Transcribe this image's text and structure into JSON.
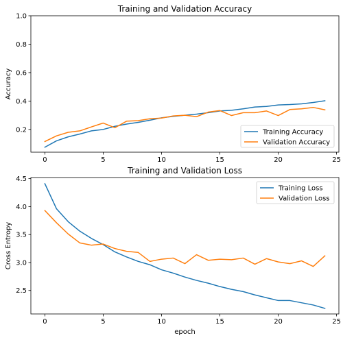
{
  "chart_data": [
    {
      "type": "line",
      "title": "Training and Validation Accuracy",
      "xlabel": "",
      "ylabel": "Accuracy",
      "xlim": [
        -1.2,
        25.2
      ],
      "ylim": [
        0.04,
        1.0
      ],
      "xticks": [
        0,
        5,
        10,
        15,
        20,
        25
      ],
      "yticks": [
        0.2,
        0.4,
        0.6,
        0.8,
        1.0
      ],
      "ytick_labels": [
        "0.2",
        "0.4",
        "0.6",
        "0.8",
        "1.0"
      ],
      "legend_position": "lower right",
      "grid": false,
      "x": [
        0,
        1,
        2,
        3,
        4,
        5,
        6,
        7,
        8,
        9,
        10,
        11,
        12,
        13,
        14,
        15,
        16,
        17,
        18,
        19,
        20,
        21,
        22,
        23,
        24
      ],
      "series": [
        {
          "name": "Training Accuracy",
          "color": "#1f77b4",
          "values": [
            0.075,
            0.12,
            0.148,
            0.168,
            0.19,
            0.2,
            0.222,
            0.238,
            0.25,
            0.265,
            0.282,
            0.292,
            0.3,
            0.308,
            0.318,
            0.33,
            0.335,
            0.345,
            0.358,
            0.362,
            0.372,
            0.375,
            0.38,
            0.39,
            0.402
          ]
        },
        {
          "name": "Validation Accuracy",
          "color": "#ff7f0e",
          "values": [
            0.115,
            0.155,
            0.18,
            0.19,
            0.218,
            0.245,
            0.212,
            0.258,
            0.262,
            0.275,
            0.28,
            0.295,
            0.3,
            0.29,
            0.322,
            0.333,
            0.298,
            0.318,
            0.318,
            0.33,
            0.298,
            0.34,
            0.345,
            0.355,
            0.338
          ]
        }
      ]
    },
    {
      "type": "line",
      "title": "Training and Validation Loss",
      "xlabel": "epoch",
      "ylabel": "Cross Entropy",
      "xlim": [
        -1.2,
        25.2
      ],
      "ylim": [
        2.08,
        4.52
      ],
      "xticks": [
        0,
        5,
        10,
        15,
        20,
        25
      ],
      "yticks": [
        2.5,
        3.0,
        3.5,
        4.0,
        4.5
      ],
      "ytick_labels": [
        "2.5",
        "3.0",
        "3.5",
        "4.0",
        "4.5"
      ],
      "legend_position": "upper right",
      "grid": false,
      "x": [
        0,
        1,
        2,
        3,
        4,
        5,
        6,
        7,
        8,
        9,
        10,
        11,
        12,
        13,
        14,
        15,
        16,
        17,
        18,
        19,
        20,
        21,
        22,
        23,
        24
      ],
      "series": [
        {
          "name": "Training Loss",
          "color": "#1f77b4",
          "values": [
            4.41,
            3.96,
            3.73,
            3.56,
            3.43,
            3.32,
            3.19,
            3.1,
            3.02,
            2.96,
            2.87,
            2.81,
            2.74,
            2.68,
            2.63,
            2.57,
            2.52,
            2.48,
            2.42,
            2.37,
            2.32,
            2.32,
            2.28,
            2.24,
            2.18
          ]
        },
        {
          "name": "Validation Loss",
          "color": "#ff7f0e",
          "values": [
            3.93,
            3.71,
            3.51,
            3.35,
            3.31,
            3.33,
            3.25,
            3.2,
            3.18,
            3.02,
            3.06,
            3.08,
            2.98,
            3.14,
            3.04,
            3.06,
            3.05,
            3.08,
            2.97,
            3.07,
            3.01,
            2.98,
            3.03,
            2.93,
            3.12
          ]
        }
      ]
    }
  ]
}
